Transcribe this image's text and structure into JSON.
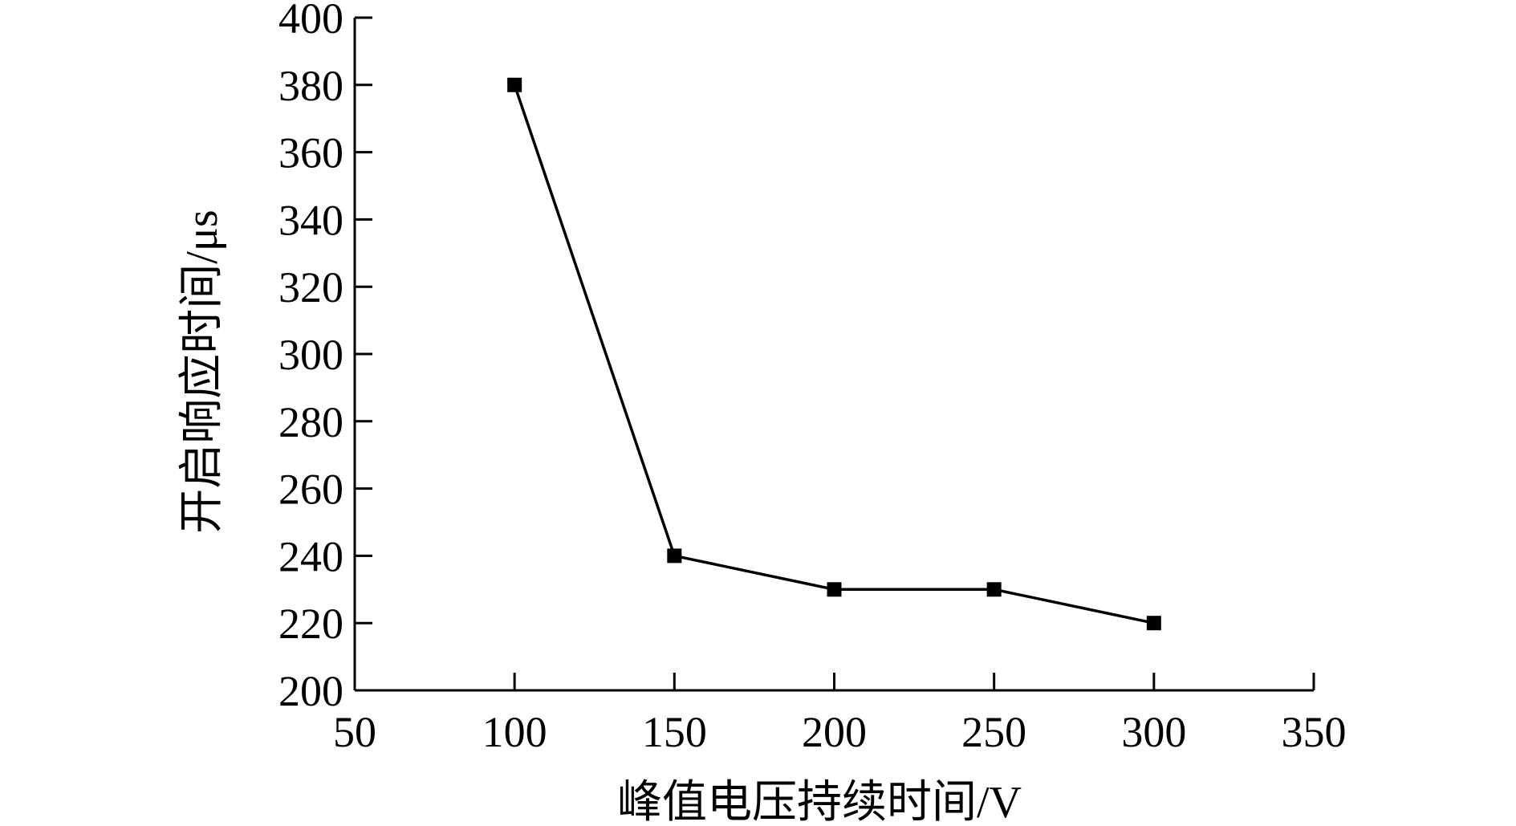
{
  "chart_data": {
    "type": "line",
    "title": "",
    "xlabel": "峰值电压持续时间/V",
    "ylabel": "开启响应时间/μs",
    "xlim": [
      50,
      350
    ],
    "ylim": [
      200,
      400
    ],
    "x_ticks": [
      50,
      100,
      150,
      200,
      250,
      300,
      350
    ],
    "y_ticks": [
      200,
      220,
      240,
      260,
      280,
      300,
      320,
      340,
      360,
      380,
      400
    ],
    "grid": false,
    "legend": "none",
    "series": [
      {
        "marker": "square",
        "color": "#000000",
        "points": [
          {
            "x": 100,
            "y": 380
          },
          {
            "x": 150,
            "y": 240
          },
          {
            "x": 200,
            "y": 230
          },
          {
            "x": 250,
            "y": 230
          },
          {
            "x": 300,
            "y": 220
          }
        ]
      }
    ]
  }
}
